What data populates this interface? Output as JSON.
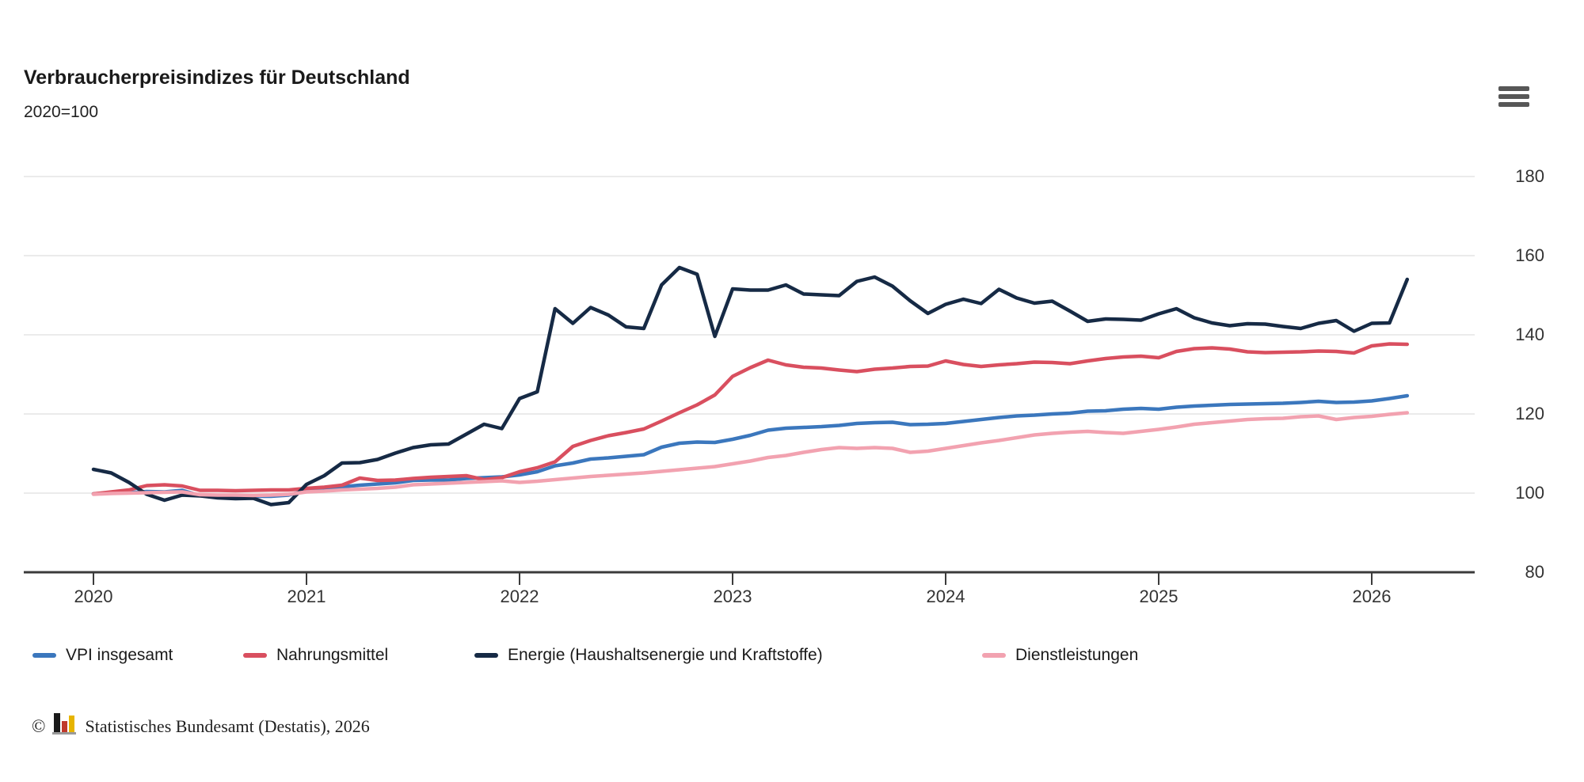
{
  "header": {
    "title": "Verbraucherpreisindizes für Deutschland",
    "subtitle": "2020=100",
    "menu_icon": "hamburger-icon"
  },
  "chart_data": {
    "type": "line",
    "title": "Verbraucherpreisindizes für Deutschland",
    "subtitle": "2020=100",
    "frequency": "monthly",
    "x_start": "2020-01",
    "x_end": "2026-03",
    "x_tick_labels": [
      "2020",
      "2021",
      "2022",
      "2023",
      "2024",
      "2025",
      "2026"
    ],
    "y_tick_values": [
      180,
      160,
      140,
      120,
      100,
      80
    ],
    "y_gridline_values": [
      180,
      160,
      140,
      120,
      100
    ],
    "ylim": [
      80,
      192
    ],
    "grid": true,
    "legend_position": "bottom-left",
    "axis_color": "#3b3b3b",
    "grid_color": "#ebebeb",
    "series": [
      {
        "name": "VPI insgesamt",
        "color": "#3b77bd",
        "values": [
          99.8,
          100.0,
          100.1,
          100.4,
          100.3,
          100.7,
          99.4,
          99.3,
          99.2,
          99.2,
          99.2,
          99.5,
          100.7,
          101.1,
          101.6,
          102.0,
          102.3,
          102.6,
          103.2,
          103.3,
          103.3,
          103.7,
          103.9,
          104.1,
          104.6,
          105.4,
          106.9,
          107.6,
          108.6,
          108.9,
          109.3,
          109.7,
          111.6,
          112.6,
          112.9,
          112.8,
          113.6,
          114.6,
          115.9,
          116.4,
          116.6,
          116.8,
          117.1,
          117.6,
          117.8,
          117.9,
          117.3,
          117.4,
          117.6,
          118.1,
          118.6,
          119.1,
          119.5,
          119.7,
          120.0,
          120.2,
          120.7,
          120.8,
          121.2,
          121.4,
          121.2,
          121.7,
          122.0,
          122.2,
          122.4,
          122.5,
          122.6,
          122.7,
          122.9,
          123.2,
          122.9,
          123.0,
          123.3,
          123.9,
          124.6
        ]
      },
      {
        "name": "Nahrungsmittel",
        "color": "#d94f5f",
        "values": [
          99.8,
          100.3,
          100.8,
          101.9,
          102.1,
          101.8,
          100.7,
          100.7,
          100.6,
          100.7,
          100.8,
          100.8,
          101.2,
          101.5,
          102.0,
          103.8,
          103.2,
          103.3,
          103.7,
          104.0,
          104.2,
          104.4,
          103.4,
          103.9,
          105.4,
          106.4,
          107.9,
          111.8,
          113.3,
          114.5,
          115.3,
          116.2,
          118.2,
          120.3,
          122.3,
          124.8,
          129.5,
          131.7,
          133.6,
          132.4,
          131.8,
          131.6,
          131.1,
          130.7,
          131.3,
          131.6,
          132.0,
          132.1,
          133.4,
          132.5,
          132.0,
          132.4,
          132.7,
          133.1,
          133.0,
          132.7,
          133.4,
          134.0,
          134.4,
          134.6,
          134.2,
          135.8,
          136.5,
          136.7,
          136.4,
          135.7,
          135.5,
          135.6,
          135.7,
          135.9,
          135.8,
          135.4,
          137.2,
          137.7,
          137.6
        ]
      },
      {
        "name": "Energie (Haushaltsenergie und Kraftstoffe)",
        "color": "#162a45",
        "values": [
          106.0,
          105.1,
          102.7,
          99.7,
          98.2,
          99.5,
          99.3,
          98.8,
          98.6,
          98.7,
          97.1,
          97.6,
          102.2,
          104.4,
          107.6,
          107.7,
          108.5,
          110.1,
          111.5,
          112.2,
          112.4,
          114.9,
          117.4,
          116.3,
          123.9,
          125.6,
          146.6,
          142.9,
          146.9,
          145.0,
          142.0,
          141.6,
          152.6,
          157.0,
          155.3,
          139.6,
          151.6,
          151.3,
          151.3,
          152.6,
          150.3,
          150.1,
          149.9,
          153.5,
          154.6,
          152.3,
          148.6,
          145.4,
          147.7,
          149.0,
          147.9,
          151.5,
          149.3,
          148.0,
          148.5,
          146.0,
          143.4,
          144.0,
          143.9,
          143.7,
          145.3,
          146.6,
          144.3,
          143.0,
          142.3,
          142.8,
          142.7,
          142.1,
          141.6,
          142.9,
          143.6,
          140.9,
          142.9,
          143.0,
          154.0
        ]
      },
      {
        "name": "Dienstleistungen",
        "color": "#f2a2b0",
        "values": [
          99.7,
          99.9,
          100.0,
          100.1,
          100.2,
          100.3,
          99.6,
          99.5,
          99.5,
          99.4,
          99.5,
          99.7,
          100.3,
          100.5,
          100.8,
          101.0,
          101.2,
          101.5,
          102.1,
          102.3,
          102.5,
          102.7,
          102.9,
          103.1,
          102.7,
          103.0,
          103.4,
          103.8,
          104.2,
          104.5,
          104.8,
          105.1,
          105.5,
          105.9,
          106.3,
          106.7,
          107.4,
          108.1,
          109.0,
          109.5,
          110.3,
          111.0,
          111.5,
          111.3,
          111.5,
          111.3,
          110.3,
          110.6,
          111.3,
          112.0,
          112.7,
          113.3,
          114.0,
          114.7,
          115.1,
          115.4,
          115.6,
          115.3,
          115.1,
          115.6,
          116.1,
          116.7,
          117.4,
          117.8,
          118.2,
          118.6,
          118.8,
          118.9,
          119.3,
          119.5,
          118.6,
          119.1,
          119.4,
          119.9,
          120.3
        ]
      }
    ]
  },
  "footer": {
    "copyright_symbol": "©",
    "logo": "destatis-bars-icon",
    "source_text": "Statistisches Bundesamt (Destatis), 2026"
  }
}
